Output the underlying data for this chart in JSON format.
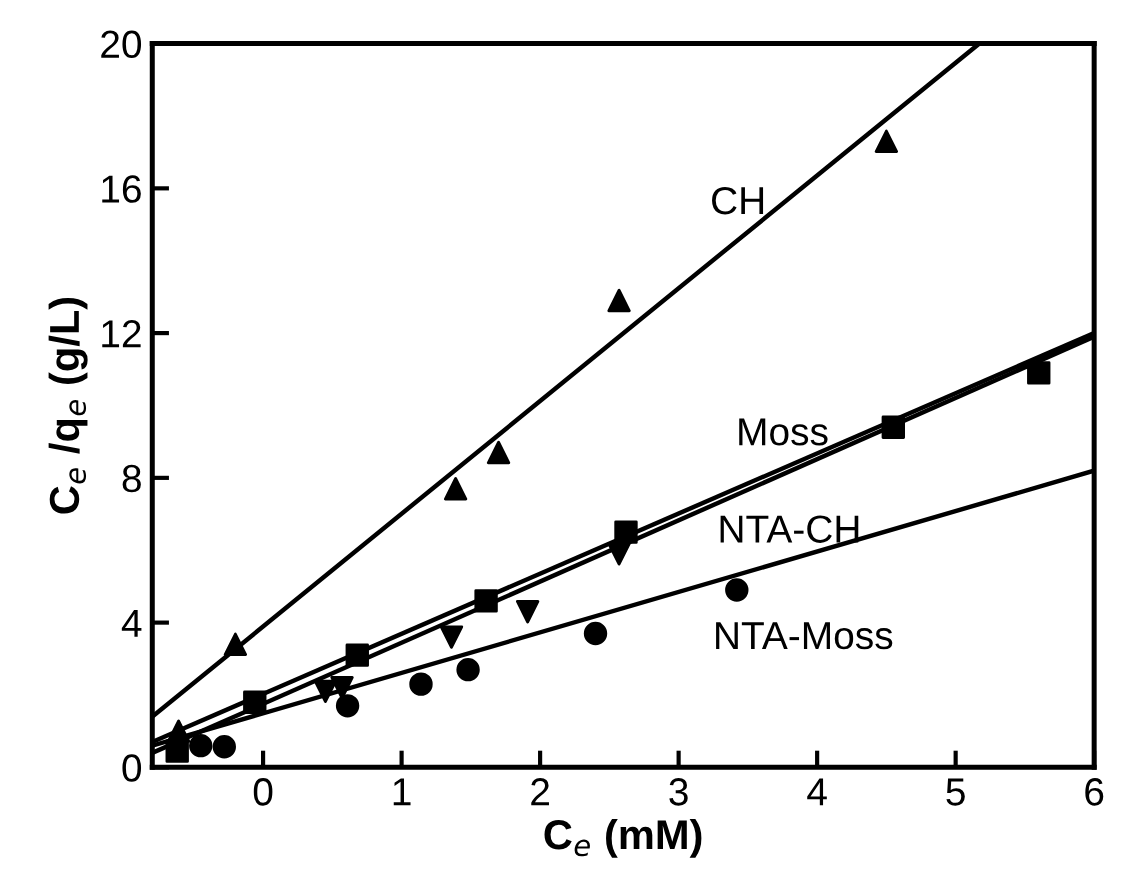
{
  "chart_data": {
    "type": "scatter",
    "xlabel": "C$_{e}$ (mM)",
    "ylabel": "C$_{e}$ /q$_{e}$ (g/L)",
    "xlim": [
      -0.8,
      6
    ],
    "xticks": [
      0,
      1,
      2,
      3,
      4,
      5,
      6
    ],
    "ylim": [
      0,
      20
    ],
    "yticks": [
      0,
      4,
      8,
      12,
      16,
      20
    ],
    "grid": false,
    "legend": false,
    "series": [
      {
        "marker": "triangle",
        "color": "#000000",
        "x": [
          -0.61,
          -0.2,
          1.39,
          1.7,
          2.57,
          4.5
        ],
        "values": [
          1.0,
          3.4,
          7.7,
          8.7,
          12.9,
          17.3
        ]
      },
      {
        "marker": "square",
        "color": "#000000",
        "x": [
          -0.62,
          -0.06,
          0.68,
          1.61,
          2.62,
          4.55,
          5.6
        ],
        "values": [
          0.45,
          1.8,
          3.1,
          4.6,
          6.5,
          9.4,
          10.9
        ]
      },
      {
        "marker": "triangle_down",
        "color": "#000000",
        "x": [
          0.45,
          0.57,
          1.36,
          1.91,
          2.57
        ],
        "values": [
          2.1,
          2.2,
          3.6,
          4.3,
          5.9
        ]
      },
      {
        "marker": "circle",
        "color": "#000000",
        "x": [
          -0.45,
          -0.28,
          0.61,
          1.14,
          1.48,
          2.4,
          3.42
        ],
        "values": [
          0.6,
          0.57,
          1.7,
          2.3,
          2.7,
          3.7,
          4.9
        ]
      },
      {
        "type": "line",
        "name": "CH",
        "marker": "none",
        "color": "#000000",
        "x": [
          -0.8,
          5.17
        ],
        "values": [
          1.4,
          20
        ]
      },
      {
        "type": "line",
        "name": "Moss",
        "marker": "none",
        "color": "#000000",
        "x": [
          -0.8,
          6
        ],
        "values": [
          0.7,
          12.0
        ]
      },
      {
        "type": "line",
        "name": "NTA-CH",
        "marker": "none",
        "color": "#000000",
        "x": [
          -0.8,
          6
        ],
        "values": [
          0.4,
          11.9
        ]
      },
      {
        "type": "line",
        "name": "NTA-Moss",
        "marker": "none",
        "color": "#000000",
        "x": [
          -0.8,
          6
        ],
        "values": [
          0.6,
          8.2
        ]
      }
    ]
  }
}
